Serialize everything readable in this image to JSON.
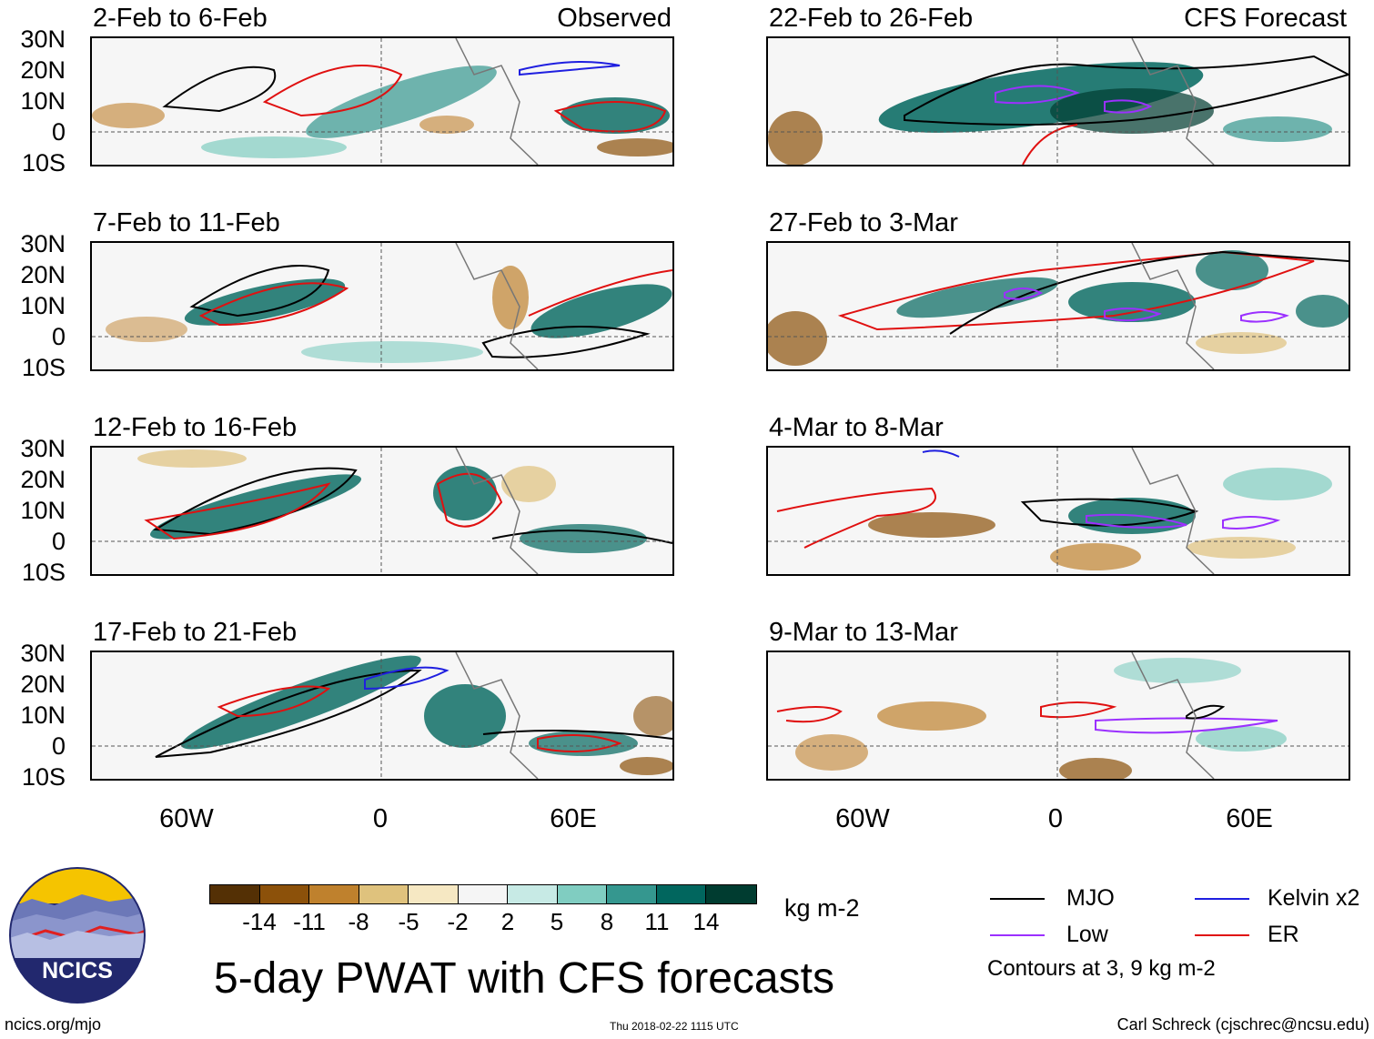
{
  "left_header": "Observed",
  "right_header": "CFS Forecast",
  "lat_labels": [
    "30N",
    "20N",
    "10N",
    "0",
    "10S"
  ],
  "lon_labels": [
    "60W",
    "0",
    "60E"
  ],
  "panels": [
    {
      "title": "2-Feb to 6-Feb"
    },
    {
      "title": "7-Feb to 11-Feb"
    },
    {
      "title": "12-Feb to 16-Feb"
    },
    {
      "title": "17-Feb to 21-Feb"
    },
    {
      "title": "22-Feb to 26-Feb"
    },
    {
      "title": "27-Feb to 3-Mar"
    },
    {
      "title": "4-Mar to 8-Mar"
    },
    {
      "title": "9-Mar to 13-Mar"
    }
  ],
  "colorbar": {
    "unit": "kg m-2",
    "labels": [
      "-14",
      "-11",
      "-8",
      "-5",
      "-2",
      "2",
      "5",
      "8",
      "11",
      "14"
    ],
    "colors": [
      "#543005",
      "#8c510a",
      "#bf812d",
      "#dfc27d",
      "#f6e8c3",
      "#f5f5f5",
      "#c7eae5",
      "#80cdc1",
      "#35978f",
      "#01665e",
      "#003c30"
    ]
  },
  "legend": {
    "items": [
      {
        "label": "MJO",
        "color": "#000000"
      },
      {
        "label": "Kelvin x2",
        "color": "#1f1fe0"
      },
      {
        "label": "Low",
        "color": "#9b30ff"
      },
      {
        "label": "ER",
        "color": "#e01010"
      }
    ],
    "note": "Contours at 3, 9 kg m-2"
  },
  "logo_text": "NCICS",
  "main_title": "5-day PWAT with CFS forecasts",
  "footer_left": "ncics.org/mjo",
  "footer_center": "Thu 2018-02-22 1115 UTC",
  "footer_right": "Carl Schreck (cjschrec@ncsu.edu)"
}
